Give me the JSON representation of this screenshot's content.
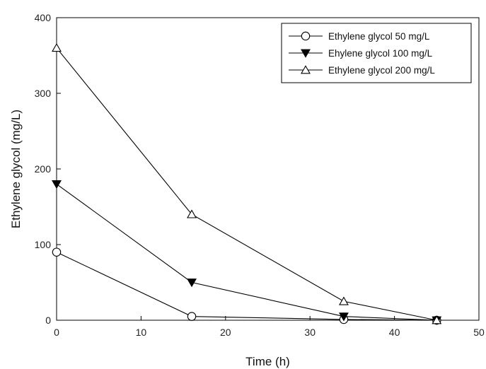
{
  "chart_data": {
    "type": "line",
    "title": "",
    "xlabel": "Time (h)",
    "ylabel": "Ethylene glycol (mg/L)",
    "xlim": [
      0,
      50
    ],
    "ylim": [
      0,
      400
    ],
    "x_ticks": [
      0,
      10,
      20,
      30,
      40,
      50
    ],
    "y_ticks": [
      0,
      100,
      200,
      300,
      400
    ],
    "grid": false,
    "legend_position": "top-right",
    "series": [
      {
        "name": "Ethylene glycol 50 mg/L",
        "marker": "circle-open",
        "x": [
          0,
          16,
          34,
          45
        ],
        "y": [
          90,
          5,
          1,
          0
        ]
      },
      {
        "name": "Ehylene glycol 100 mg/L",
        "marker": "triangle-down-filled",
        "x": [
          0,
          16,
          34,
          45
        ],
        "y": [
          180,
          50,
          5,
          0
        ]
      },
      {
        "name": "Ethylene glycol 200 mg/L",
        "marker": "triangle-up-open",
        "x": [
          0,
          16,
          34,
          45
        ],
        "y": [
          360,
          140,
          25,
          0
        ]
      }
    ]
  }
}
